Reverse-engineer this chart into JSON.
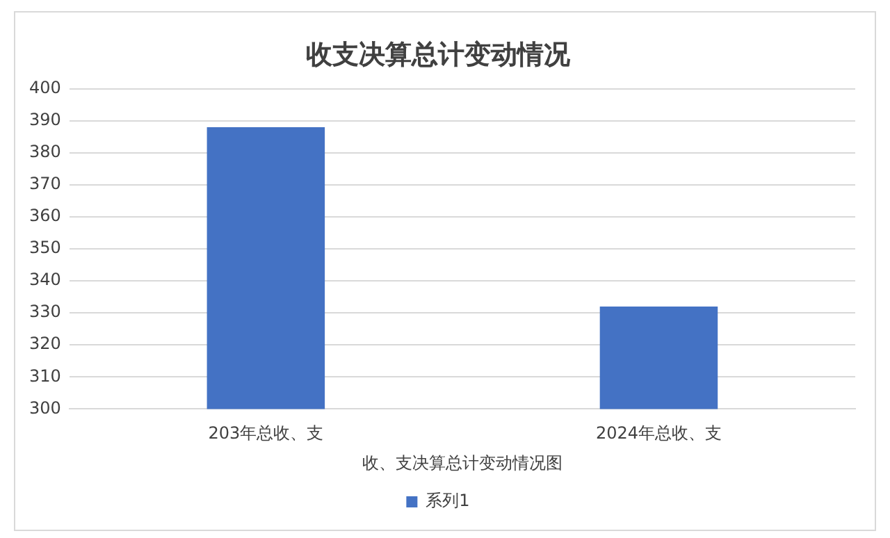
{
  "chart_data": {
    "type": "bar",
    "title": "收支决算总计变动情况",
    "xlabel": "收、支决算总计变动情况图",
    "categories": [
      "203年总收、支",
      "2024年总收、支"
    ],
    "series": [
      {
        "name": "系列1",
        "color": "#4472c4",
        "values": [
          388,
          332
        ]
      }
    ],
    "ylim": [
      300,
      400
    ],
    "yticks": [
      300,
      310,
      320,
      330,
      340,
      350,
      360,
      370,
      380,
      390,
      400
    ],
    "grid": "y",
    "legend": "bottom"
  }
}
